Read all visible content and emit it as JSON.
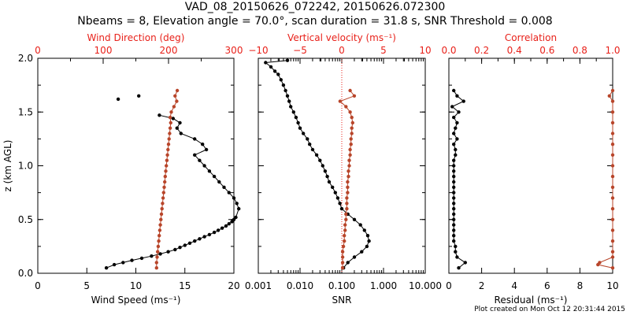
{
  "title": "VAD_08_20150626_072242, 20150626.072300",
  "subtitle": "Nbeams = 8, Elevation angle = 70.0°, scan duration = 31.8 s, SNR Threshold = 0.008",
  "footer": "Plot created on Mon Oct 12 20:31:44 2015",
  "colors": {
    "axis": "#000000",
    "top_axis": "#e8211a",
    "black_series": "#000000",
    "red_series": "#b8452a"
  },
  "chart_data": [
    {
      "type": "line",
      "ylabel": "z (km AGL)",
      "ylim": [
        0,
        2
      ],
      "yticks": [
        "0.0",
        "0.5",
        "1.0",
        "1.5",
        "2.0"
      ],
      "xlabel": "Wind Speed (ms⁻¹)",
      "xlim": [
        0,
        20
      ],
      "xticks": [
        "0",
        "5",
        "10",
        "15",
        "20"
      ],
      "top_xlabel": "Wind Direction (deg)",
      "top_xlim": [
        0,
        360
      ],
      "top_xticks": [
        "0",
        "100",
        "200",
        "300"
      ],
      "series": [
        {
          "axis": "bottom",
          "color": "black",
          "z": [
            0.05,
            0.08,
            0.1,
            0.12,
            0.14,
            0.16,
            0.18,
            0.2,
            0.22,
            0.24,
            0.26,
            0.28,
            0.3,
            0.32,
            0.34,
            0.36,
            0.38,
            0.4,
            0.42,
            0.44,
            0.46,
            0.48,
            0.5,
            0.52,
            0.6,
            0.65,
            0.7,
            0.75,
            0.8,
            0.85,
            0.9,
            0.95,
            1.0,
            1.05,
            1.1,
            1.15,
            1.2,
            1.25,
            1.3,
            1.35,
            1.4,
            1.44,
            1.47
          ],
          "values": [
            7.0,
            7.8,
            8.7,
            9.6,
            10.6,
            11.6,
            12.5,
            13.3,
            14.0,
            14.5,
            15.0,
            15.5,
            16.0,
            16.5,
            17.0,
            17.5,
            18.0,
            18.4,
            18.8,
            19.2,
            19.5,
            19.8,
            20.0,
            20.2,
            20.5,
            20.3,
            20.0,
            19.5,
            19.0,
            18.5,
            18.0,
            17.5,
            17.0,
            16.5,
            16.0,
            17.2,
            16.8,
            16.0,
            14.6,
            14.2,
            14.5,
            13.8,
            12.4
          ]
        },
        {
          "axis": "bottom",
          "color": "black",
          "z": [
            1.62
          ],
          "values": [
            8.2
          ]
        },
        {
          "axis": "bottom",
          "color": "black",
          "z": [
            1.65
          ],
          "values": [
            10.3
          ]
        },
        {
          "axis": "top",
          "color": "red",
          "z": [
            0.05,
            0.1,
            0.15,
            0.2,
            0.25,
            0.3,
            0.35,
            0.4,
            0.45,
            0.5,
            0.55,
            0.6,
            0.65,
            0.7,
            0.75,
            0.8,
            0.85,
            0.9,
            0.95,
            1.0,
            1.05,
            1.1,
            1.15,
            1.2,
            1.25,
            1.3,
            1.35,
            1.4,
            1.45,
            1.5,
            1.55,
            1.6,
            1.65,
            1.7
          ],
          "values": [
            218,
            218,
            219,
            220,
            221,
            222,
            223,
            224,
            225,
            226,
            227,
            228,
            229,
            230,
            231,
            232,
            233,
            234,
            235,
            236,
            237,
            238,
            239,
            240,
            241,
            242,
            243,
            244,
            243,
            245,
            250,
            255,
            252,
            256
          ]
        }
      ]
    },
    {
      "type": "line",
      "xlabel": "SNR",
      "xscale": "log",
      "xlim": [
        0.001,
        10
      ],
      "xticks": [
        "0.001",
        "0.010",
        "0.100",
        "1.000",
        "10.000"
      ],
      "top_xlabel": "Vertical velocity (ms⁻¹)",
      "top_xlim": [
        -10,
        10
      ],
      "top_xticks": [
        "−10",
        "−5",
        "0",
        "5",
        "10"
      ],
      "reference_line": {
        "axis": "top",
        "value": 0,
        "style": "dotted"
      },
      "series": [
        {
          "axis": "bottom",
          "color": "black",
          "z": [
            0.05,
            0.1,
            0.15,
            0.2,
            0.25,
            0.3,
            0.35,
            0.4,
            0.45,
            0.5,
            0.55,
            0.6,
            0.65,
            0.7,
            0.75,
            0.8,
            0.85,
            0.9,
            0.95,
            1.0,
            1.05,
            1.1,
            1.15,
            1.2,
            1.25,
            1.3,
            1.35,
            1.4,
            1.45,
            1.5,
            1.55,
            1.6,
            1.65,
            1.7,
            1.75,
            1.8,
            1.85,
            1.88,
            1.92,
            1.96,
            1.98
          ],
          "values": [
            0.11,
            0.14,
            0.2,
            0.3,
            0.4,
            0.45,
            0.42,
            0.35,
            0.28,
            0.2,
            0.14,
            0.1,
            0.09,
            0.08,
            0.07,
            0.06,
            0.05,
            0.045,
            0.04,
            0.035,
            0.03,
            0.025,
            0.02,
            0.017,
            0.015,
            0.012,
            0.01,
            0.009,
            0.008,
            0.007,
            0.006,
            0.0055,
            0.005,
            0.0045,
            0.004,
            0.0035,
            0.003,
            0.0025,
            0.002,
            0.0015,
            0.005
          ]
        },
        {
          "axis": "top",
          "color": "red",
          "z": [
            0.05,
            0.1,
            0.15,
            0.2,
            0.25,
            0.3,
            0.35,
            0.4,
            0.45,
            0.5,
            0.55,
            0.6,
            0.65,
            0.7,
            0.75,
            0.8,
            0.85,
            0.9,
            0.95,
            1.0,
            1.05,
            1.1,
            1.15,
            1.2,
            1.25,
            1.3,
            1.35,
            1.4,
            1.45,
            1.5,
            1.55,
            1.6,
            1.65,
            1.7
          ],
          "values": [
            0.1,
            0.1,
            0.1,
            0.1,
            0.2,
            0.3,
            0.3,
            0.4,
            0.4,
            0.5,
            0.5,
            0.6,
            0.6,
            0.6,
            0.7,
            0.7,
            0.7,
            0.8,
            0.8,
            0.9,
            0.9,
            1.0,
            1.0,
            1.1,
            1.1,
            1.2,
            1.2,
            1.3,
            1.2,
            1.0,
            0.5,
            -0.2,
            1.5,
            1.0
          ]
        }
      ]
    },
    {
      "type": "line",
      "xlabel": "Residual (ms⁻¹)",
      "xlim": [
        0,
        10
      ],
      "xticks": [
        "0",
        "2",
        "4",
        "6",
        "8",
        "10"
      ],
      "top_xlabel": "Correlation",
      "top_xlim": [
        0,
        1
      ],
      "top_xticks": [
        "0.0",
        "0.2",
        "0.4",
        "0.6",
        "0.8",
        "1.0"
      ],
      "series": [
        {
          "axis": "bottom",
          "color": "black",
          "z": [
            0.05,
            0.1,
            0.15,
            0.2,
            0.25,
            0.3,
            0.35,
            0.4,
            0.45,
            0.5,
            0.55,
            0.6,
            0.65,
            0.7,
            0.75,
            0.8,
            0.85,
            0.9,
            0.95,
            1.0,
            1.05,
            1.1,
            1.15,
            1.2,
            1.25,
            1.3,
            1.35,
            1.4,
            1.45,
            1.5,
            1.55,
            1.6,
            1.65,
            1.7
          ],
          "values": [
            0.6,
            1.0,
            0.5,
            0.4,
            0.4,
            0.3,
            0.3,
            0.3,
            0.3,
            0.3,
            0.3,
            0.3,
            0.3,
            0.3,
            0.3,
            0.3,
            0.3,
            0.3,
            0.3,
            0.3,
            0.3,
            0.4,
            0.4,
            0.3,
            0.5,
            0.3,
            0.4,
            0.5,
            0.3,
            0.6,
            0.2,
            0.9,
            0.5,
            0.3
          ]
        },
        {
          "axis": "top",
          "color": "red",
          "z": [
            0.05,
            0.08,
            0.1,
            0.15,
            0.2,
            0.3,
            0.4,
            0.5,
            0.6,
            0.7,
            0.8,
            0.9,
            1.0,
            1.1,
            1.2,
            1.3,
            1.4,
            1.5,
            1.6,
            1.65,
            1.7
          ],
          "values": [
            1.0,
            0.91,
            0.92,
            1.0,
            1.0,
            1.0,
            1.0,
            1.0,
            1.0,
            1.0,
            1.0,
            1.0,
            1.0,
            1.0,
            1.0,
            1.0,
            1.0,
            1.0,
            1.0,
            0.98,
            1.0
          ]
        }
      ]
    }
  ]
}
